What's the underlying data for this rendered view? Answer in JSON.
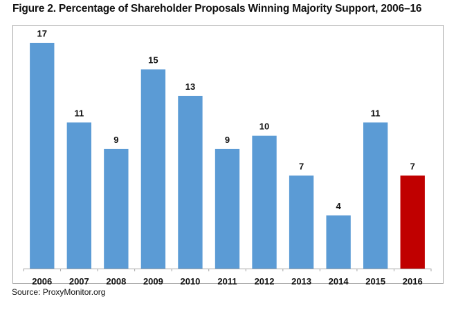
{
  "figure": {
    "title": "Figure 2. Percentage of Shareholder Proposals Winning Majority Support, 2006–16",
    "source": "Source: ProxyMonitor.org"
  },
  "chart_data": {
    "type": "bar",
    "title": "Figure 2. Percentage of Shareholder Proposals Winning Majority Support, 2006–16",
    "xlabel": "",
    "ylabel": "",
    "categories": [
      "2006",
      "2007",
      "2008",
      "2009",
      "2010",
      "2011",
      "2012",
      "2013",
      "2014",
      "2015",
      "2016"
    ],
    "values": [
      17,
      11,
      9,
      15,
      13,
      9,
      10,
      7,
      4,
      11,
      7
    ],
    "data_labels": [
      "17",
      "11",
      "9",
      "15",
      "13",
      "9",
      "10",
      "7",
      "4",
      "11",
      "7"
    ],
    "ylim": [
      0,
      17
    ],
    "grid": false,
    "legend": "none",
    "colors": {
      "default": "#5b9bd5",
      "highlight": "#c00000",
      "highlight_category": "2016"
    }
  }
}
